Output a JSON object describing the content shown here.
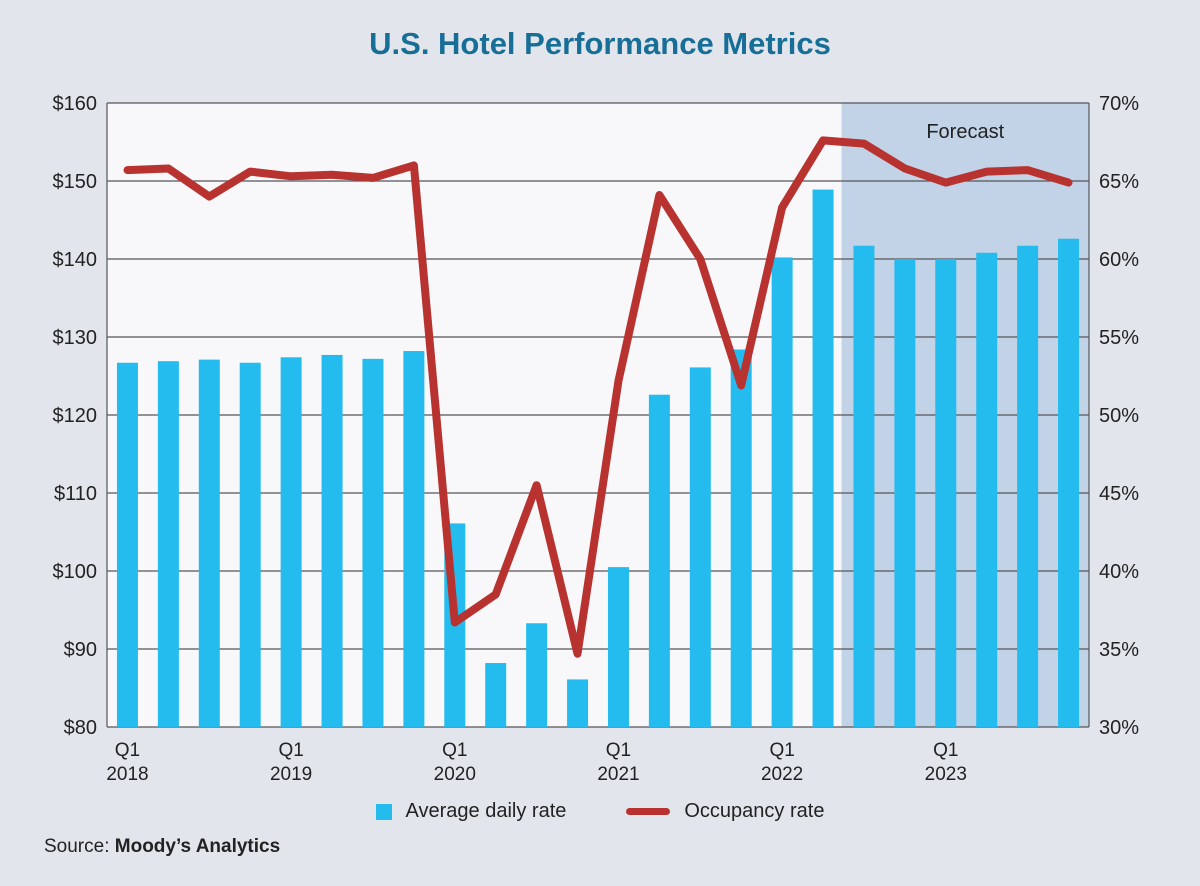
{
  "title": "U.S. Hotel Performance Metrics",
  "source_label": "Source:",
  "source_name": "Moody’s Analytics",
  "forecast_label": "Forecast",
  "chart_data": {
    "type": "bar+line",
    "title": "U.S. Hotel Performance Metrics",
    "x_tick_labels": [
      {
        "index": 0,
        "line1": "Q1",
        "line2": "2018"
      },
      {
        "index": 4,
        "line1": "Q1",
        "line2": "2019"
      },
      {
        "index": 8,
        "line1": "Q1",
        "line2": "2020"
      },
      {
        "index": 12,
        "line1": "Q1",
        "line2": "2021"
      },
      {
        "index": 16,
        "line1": "Q1",
        "line2": "2022"
      },
      {
        "index": 20,
        "line1": "Q1",
        "line2": "2023"
      }
    ],
    "forecast_start_index": 18,
    "y_left": {
      "range": [
        80,
        160
      ],
      "ticks": [
        "$80",
        "$90",
        "$100",
        "$110",
        "$120",
        "$130",
        "$140",
        "$150",
        "$160"
      ]
    },
    "y_right": {
      "range": [
        30,
        70
      ],
      "ticks": [
        "30%",
        "35%",
        "40%",
        "45%",
        "50%",
        "55%",
        "60%",
        "65%",
        "70%"
      ]
    },
    "grid": true,
    "legend_position": "bottom",
    "series": [
      {
        "name": "Average daily rate",
        "type": "bar",
        "axis": "left",
        "color": "#24bcee",
        "values": [
          126.7,
          126.9,
          127.1,
          126.7,
          127.4,
          127.7,
          127.2,
          128.2,
          106.1,
          88.2,
          93.3,
          86.1,
          100.5,
          122.6,
          126.1,
          128.4,
          140.2,
          148.9,
          141.7,
          140.0,
          140.0,
          140.8,
          141.7,
          142.6
        ]
      },
      {
        "name": "Occupancy rate",
        "type": "line",
        "axis": "right",
        "color": "#b83330",
        "values": [
          65.7,
          65.8,
          64.0,
          65.6,
          65.3,
          65.4,
          65.2,
          66.0,
          36.7,
          38.5,
          45.5,
          34.7,
          52.2,
          64.1,
          60.0,
          51.9,
          63.3,
          67.6,
          67.4,
          65.8,
          64.9,
          65.6,
          65.7,
          64.9
        ]
      }
    ]
  }
}
